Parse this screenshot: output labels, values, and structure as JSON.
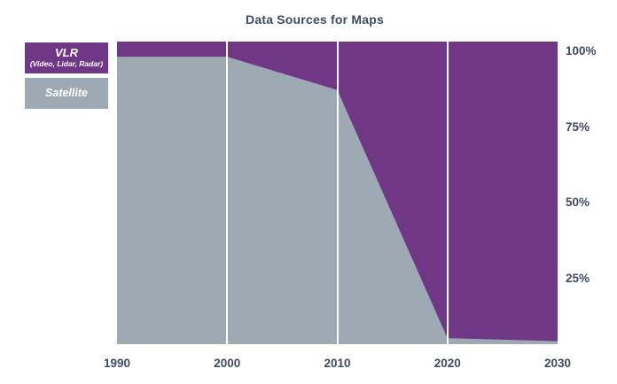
{
  "title": "Data Sources for Maps",
  "colors": {
    "vlr_purple": "#703787",
    "satellite_gray": "#9daab3",
    "axis_text": "#3e4a63",
    "gridline": "#ffffff",
    "background": "#ffffff"
  },
  "legend": {
    "vlr": {
      "label": "VLR",
      "sublabel": "(Video, Lidar, Radar)"
    },
    "satellite": {
      "label": "Satellite"
    }
  },
  "chart_data": {
    "type": "area",
    "stacked": true,
    "title": "Data Sources for Maps",
    "xlabel": "",
    "ylabel": "",
    "units": "percent",
    "x": [
      1990,
      2000,
      2010,
      2020,
      2030
    ],
    "x_tick_labels": [
      "1990",
      "2000",
      "2010",
      "2020",
      "2030"
    ],
    "series": [
      {
        "name": "Satellite",
        "color": "#9daab3",
        "values": [
          95,
          95,
          84,
          2,
          1
        ]
      },
      {
        "name": "VLR (Video, Lidar, Radar)",
        "color": "#703787",
        "values": [
          5,
          5,
          16,
          98,
          99
        ]
      }
    ],
    "ylim": [
      0,
      100
    ],
    "y_ticks": [
      {
        "value": 100,
        "label": "100%"
      },
      {
        "value": 75,
        "label": "75%"
      },
      {
        "value": 50,
        "label": "50%"
      },
      {
        "value": 25,
        "label": "25%"
      }
    ],
    "grid": "vertical white gridlines at interior x ticks (2000, 2010, 2020); no horizontal gridlines",
    "legend_position": "left"
  }
}
